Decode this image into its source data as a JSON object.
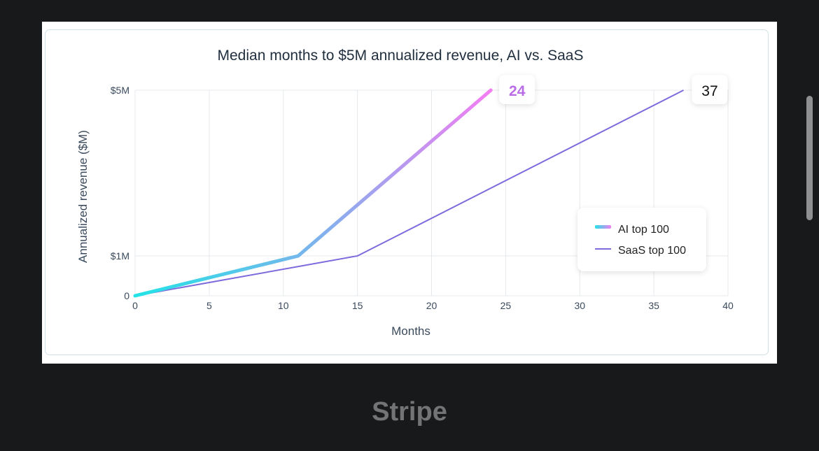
{
  "chart_data": {
    "type": "line",
    "title": "Median months to $5M annualized revenue, AI vs. SaaS",
    "xlabel": "Months",
    "ylabel": "Annualized revenue ($M)",
    "xlim": [
      0,
      40
    ],
    "x_ticks": [
      "0",
      "5",
      "10",
      "15",
      "20",
      "25",
      "30",
      "35",
      "40"
    ],
    "y_ticks": [
      {
        "value": 0,
        "label": "0"
      },
      {
        "value": 1,
        "label": "$1M"
      },
      {
        "value": 5,
        "label": "$5M"
      }
    ],
    "grid": true,
    "legend_position": "right",
    "series": [
      {
        "name": "AI top 100",
        "points": [
          {
            "x": 0,
            "y": 0
          },
          {
            "x": 11,
            "y": 1
          },
          {
            "x": 24,
            "y": 5
          }
        ],
        "end_label": "24",
        "gradient": [
          "#22e3e6",
          "#7ab4ec",
          "#f27ef2"
        ]
      },
      {
        "name": "SaaS top 100",
        "points": [
          {
            "x": 0,
            "y": 0
          },
          {
            "x": 15,
            "y": 1
          },
          {
            "x": 37,
            "y": 5
          }
        ],
        "end_label": "37",
        "color": "#7d6bdd"
      }
    ]
  },
  "caption": "Stripe"
}
